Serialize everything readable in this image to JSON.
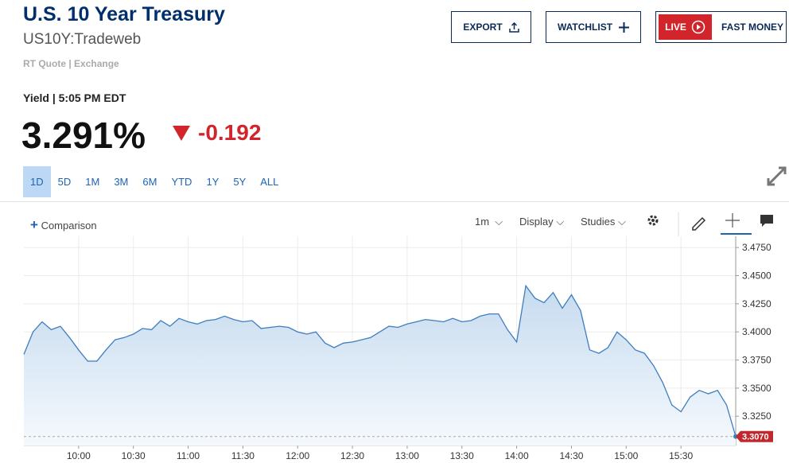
{
  "header": {
    "title": "U.S. 10 Year Treasury",
    "symbol": "US10Y:Tradeweb",
    "quote_source": "RT Quote | Exchange"
  },
  "buttons": {
    "export": "EXPORT",
    "watchlist": "WATCHLIST",
    "live": "LIVE",
    "fast_money": "FAST MONEY"
  },
  "quote": {
    "label": "Yield | 5:05 PM EDT",
    "last": "3.291%",
    "change": "-0.192"
  },
  "ranges": [
    "1D",
    "5D",
    "1M",
    "3M",
    "6M",
    "YTD",
    "1Y",
    "5Y",
    "ALL"
  ],
  "selected_range": 0,
  "toolbar": {
    "comparison": "Comparison",
    "interval": "1m",
    "display": "Display",
    "studies": "Studies"
  },
  "chart_data": {
    "type": "area",
    "color": "#3d7ebf",
    "x": [
      "9:30",
      "9:35",
      "9:40",
      "9:45",
      "9:50",
      "9:55",
      "10:00",
      "10:05",
      "10:10",
      "10:15",
      "10:20",
      "10:25",
      "10:30",
      "10:35",
      "10:40",
      "10:45",
      "10:50",
      "10:55",
      "11:00",
      "11:05",
      "11:10",
      "11:15",
      "11:20",
      "11:25",
      "11:30",
      "11:35",
      "11:40",
      "11:45",
      "11:50",
      "11:55",
      "12:00",
      "12:05",
      "12:10",
      "12:15",
      "12:20",
      "12:25",
      "12:30",
      "12:35",
      "12:40",
      "12:45",
      "12:50",
      "12:55",
      "13:00",
      "13:05",
      "13:10",
      "13:15",
      "13:20",
      "13:25",
      "13:30",
      "13:35",
      "13:40",
      "13:45",
      "13:50",
      "13:55",
      "14:00",
      "14:05",
      "14:10",
      "14:15",
      "14:20",
      "14:25",
      "14:30",
      "14:35",
      "14:40",
      "14:45",
      "14:50",
      "14:55",
      "15:00",
      "15:05",
      "15:10",
      "15:15",
      "15:20",
      "15:25",
      "15:30",
      "15:35",
      "15:40",
      "15:45",
      "15:50",
      "15:55",
      "16:00"
    ],
    "values": [
      3.38,
      3.4,
      3.409,
      3.402,
      3.405,
      3.395,
      3.384,
      3.374,
      3.374,
      3.384,
      3.393,
      3.395,
      3.398,
      3.403,
      3.402,
      3.41,
      3.405,
      3.412,
      3.409,
      3.407,
      3.41,
      3.411,
      3.414,
      3.411,
      3.409,
      3.41,
      3.403,
      3.404,
      3.405,
      3.404,
      3.4,
      3.398,
      3.4,
      3.39,
      3.386,
      3.39,
      3.391,
      3.393,
      3.395,
      3.4,
      3.405,
      3.404,
      3.407,
      3.409,
      3.411,
      3.41,
      3.409,
      3.412,
      3.409,
      3.41,
      3.414,
      3.416,
      3.416,
      3.402,
      3.391,
      3.441,
      3.43,
      3.426,
      3.435,
      3.421,
      3.433,
      3.419,
      3.384,
      3.381,
      3.386,
      3.4,
      3.393,
      3.384,
      3.381,
      3.37,
      3.355,
      3.335,
      3.329,
      3.342,
      3.348,
      3.345,
      3.348,
      3.335,
      3.307
    ],
    "last_label": "3.3070",
    "xlim": [
      "9:30",
      "16:00"
    ],
    "xticks": [
      "10:00",
      "10:30",
      "11:00",
      "11:30",
      "12:00",
      "12:30",
      "13:00",
      "13:30",
      "14:00",
      "14:30",
      "15:00",
      "15:30"
    ],
    "ylim": [
      3.299,
      3.485
    ],
    "yticks": [
      {
        "value": 3.325,
        "label": "3.3250"
      },
      {
        "value": 3.35,
        "label": "3.3500"
      },
      {
        "value": 3.375,
        "label": "3.3750"
      },
      {
        "value": 3.4,
        "label": "3.4000"
      },
      {
        "value": 3.425,
        "label": "3.4250"
      },
      {
        "value": 3.45,
        "label": "3.4500"
      },
      {
        "value": 3.475,
        "label": "3.4750"
      }
    ],
    "grid": true
  }
}
